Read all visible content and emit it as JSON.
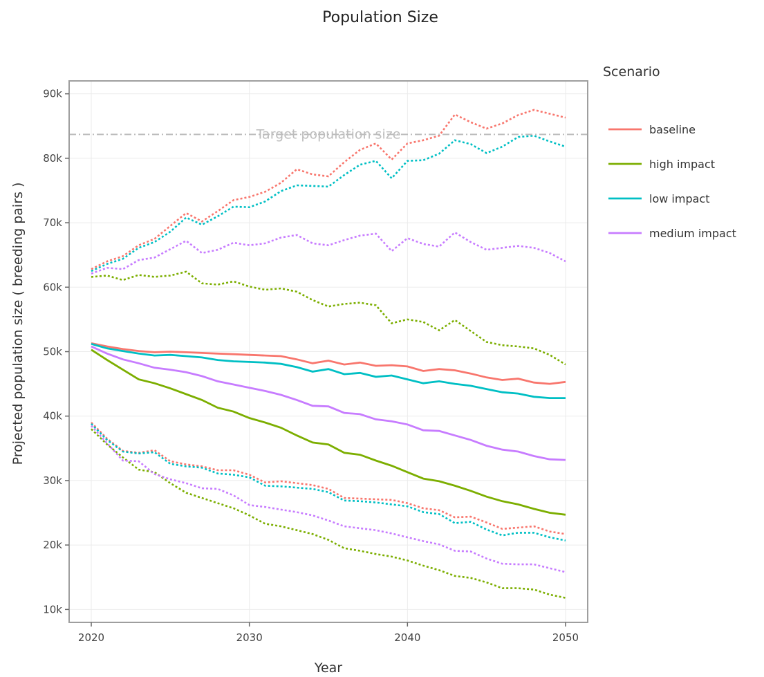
{
  "chart_data": {
    "type": "line",
    "title": "Population Size",
    "xlabel": "Year",
    "ylabel": "Projected population size ( breeding pairs )",
    "xlim": [
      2018.6,
      2051.4
    ],
    "ylim": [
      8000,
      92000
    ],
    "x_ticks": [
      2020,
      2030,
      2040,
      2050
    ],
    "y_ticks": [
      10000,
      20000,
      30000,
      40000,
      50000,
      60000,
      70000,
      80000,
      90000
    ],
    "y_tick_labels": [
      "10k",
      "20k",
      "30k",
      "40k",
      "50k",
      "60k",
      "70k",
      "80k",
      "90k"
    ],
    "grid": true,
    "legend": {
      "title": "Scenario",
      "position": "right"
    },
    "reference_line": {
      "y": 83700,
      "label": "Target population size",
      "color": "#bdbdbd"
    },
    "x": [
      2020,
      2021,
      2022,
      2023,
      2024,
      2025,
      2026,
      2027,
      2028,
      2029,
      2030,
      2031,
      2032,
      2033,
      2034,
      2035,
      2036,
      2037,
      2038,
      2039,
      2040,
      2041,
      2042,
      2043,
      2044,
      2045,
      2046,
      2047,
      2048,
      2049,
      2050
    ],
    "series": [
      {
        "name": "baseline",
        "color": "#F8766D",
        "mean": [
          51300,
          50800,
          50400,
          50100,
          49900,
          50000,
          49900,
          49800,
          49700,
          49600,
          49500,
          49400,
          49300,
          48800,
          48200,
          48600,
          48000,
          48300,
          47800,
          47900,
          47700,
          47000,
          47300,
          47100,
          46600,
          46000,
          45600,
          45800,
          45200,
          45000,
          45300
        ],
        "upper": [
          62800,
          64000,
          64800,
          66500,
          67500,
          69500,
          71500,
          70200,
          71800,
          73500,
          74000,
          74800,
          76200,
          78300,
          77500,
          77200,
          79400,
          81300,
          82300,
          79800,
          82300,
          82800,
          83500,
          86800,
          85600,
          84600,
          85400,
          86700,
          87500,
          86900,
          86300
        ],
        "lower": [
          39000,
          36500,
          34600,
          34300,
          34700,
          33000,
          32500,
          32200,
          31600,
          31600,
          30900,
          29700,
          29900,
          29600,
          29300,
          28700,
          27300,
          27200,
          27100,
          27000,
          26500,
          25700,
          25400,
          24300,
          24400,
          23500,
          22500,
          22700,
          22900,
          22100,
          21700
        ]
      },
      {
        "name": "high impact",
        "color": "#7CAE00",
        "mean": [
          50300,
          48700,
          47200,
          45700,
          45100,
          44300,
          43400,
          42500,
          41300,
          40700,
          39700,
          39000,
          38200,
          37000,
          35900,
          35600,
          34300,
          34000,
          33100,
          32300,
          31300,
          30300,
          29900,
          29200,
          28400,
          27500,
          26800,
          26300,
          25600,
          25000,
          24700
        ],
        "upper": [
          61600,
          61800,
          61100,
          61900,
          61600,
          61800,
          62400,
          60600,
          60400,
          60900,
          60100,
          59600,
          59800,
          59300,
          58000,
          57000,
          57400,
          57600,
          57200,
          54400,
          55000,
          54600,
          53300,
          54900,
          53200,
          51500,
          51000,
          50800,
          50500,
          49500,
          48000
        ],
        "lower": [
          38000,
          35600,
          33600,
          31700,
          31300,
          29600,
          28100,
          27300,
          26500,
          25700,
          24600,
          23300,
          22900,
          22300,
          21700,
          20800,
          19500,
          19100,
          18600,
          18200,
          17600,
          16800,
          16100,
          15200,
          14900,
          14200,
          13300,
          13300,
          13100,
          12300,
          11800
        ]
      },
      {
        "name": "low impact",
        "color": "#00BFC4",
        "mean": [
          51200,
          50500,
          50100,
          49700,
          49400,
          49500,
          49300,
          49100,
          48700,
          48500,
          48400,
          48300,
          48100,
          47600,
          46900,
          47300,
          46500,
          46700,
          46100,
          46300,
          45700,
          45100,
          45400,
          45000,
          44700,
          44200,
          43700,
          43500,
          43000,
          42800,
          42800
        ],
        "upper": [
          62500,
          63600,
          64400,
          66100,
          67000,
          68600,
          70800,
          69700,
          71000,
          72500,
          72400,
          73300,
          74900,
          75800,
          75700,
          75600,
          77400,
          79000,
          79600,
          76900,
          79600,
          79700,
          80700,
          82800,
          82200,
          80800,
          81800,
          83300,
          83500,
          82600,
          81800
        ],
        "lower": [
          38800,
          36300,
          34500,
          34200,
          34400,
          32600,
          32200,
          32000,
          31100,
          30900,
          30500,
          29200,
          29100,
          28900,
          28700,
          28200,
          26900,
          26800,
          26600,
          26300,
          26000,
          25100,
          24800,
          23400,
          23600,
          22400,
          21500,
          21900,
          21900,
          21200,
          20700
        ]
      },
      {
        "name": "medium impact",
        "color": "#C77CFF",
        "mean": [
          50800,
          49700,
          48800,
          48200,
          47500,
          47200,
          46800,
          46200,
          45400,
          44900,
          44400,
          43900,
          43300,
          42500,
          41600,
          41500,
          40500,
          40300,
          39500,
          39200,
          38700,
          37800,
          37700,
          37000,
          36300,
          35400,
          34800,
          34500,
          33800,
          33300,
          33200
        ],
        "upper": [
          62100,
          63000,
          62800,
          64200,
          64600,
          65900,
          67200,
          65300,
          65800,
          66900,
          66500,
          66800,
          67700,
          68100,
          66800,
          66500,
          67300,
          68000,
          68300,
          65600,
          67600,
          66700,
          66300,
          68500,
          67000,
          65800,
          66100,
          66400,
          66100,
          65300,
          64000
        ],
        "lower": [
          38500,
          35800,
          33100,
          33000,
          31000,
          30200,
          29600,
          28800,
          28700,
          27700,
          26200,
          25900,
          25500,
          25100,
          24600,
          23800,
          22900,
          22600,
          22300,
          21800,
          21200,
          20600,
          20100,
          19100,
          19000,
          17900,
          17100,
          17000,
          17000,
          16400,
          15800
        ]
      }
    ]
  }
}
